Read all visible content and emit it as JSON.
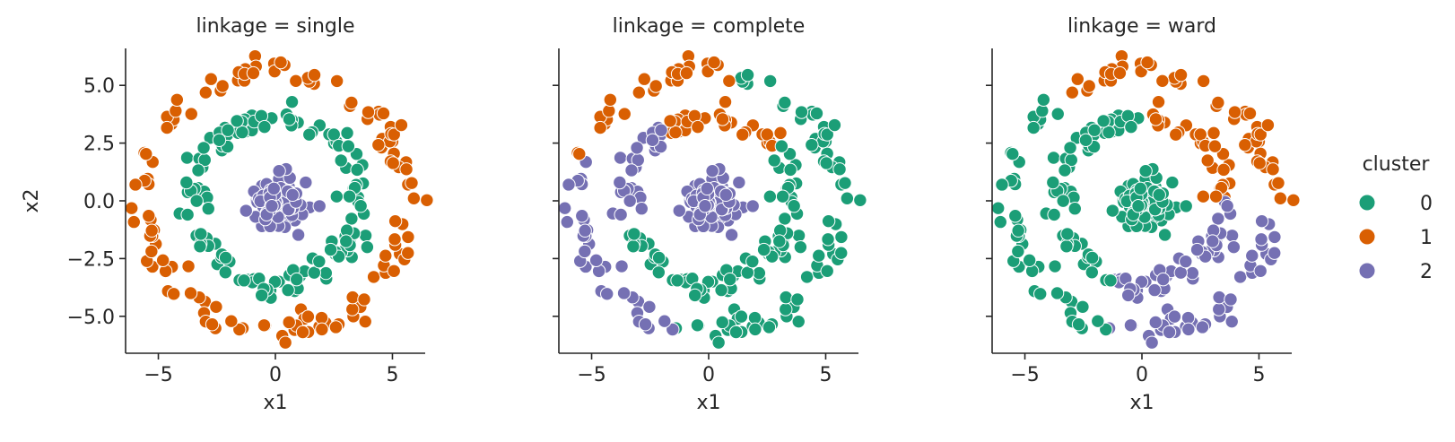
{
  "colors": {
    "0": "#1b9e77",
    "1": "#d95f02",
    "2": "#7570b3",
    "axis": "#262626",
    "point_edge": "#ffffff"
  },
  "legend": {
    "title": "cluster",
    "placement": "right",
    "entries": [
      {
        "label": "0",
        "color_key": "0"
      },
      {
        "label": "1",
        "color_key": "1"
      },
      {
        "label": "2",
        "color_key": "2"
      }
    ]
  },
  "chart_data": [
    {
      "type": "scatter",
      "title": "linkage = single",
      "xlabel": "x1",
      "ylabel": "x2",
      "xlim": [
        -6.4,
        6.4
      ],
      "ylim": [
        -6.6,
        6.6
      ],
      "xticks": [
        -5,
        0,
        5
      ],
      "xtick_labels": [
        "−5",
        "0",
        "5"
      ],
      "yticks": [
        5.0,
        2.5,
        0.0,
        -2.5,
        -5.0
      ],
      "ytick_labels": [
        "5.0",
        "2.5",
        "0.0",
        "−2.5",
        "−5.0"
      ],
      "show_ytick_labels": true,
      "grid": false,
      "assignment": "single",
      "rings": {
        "inner_blob_radius_max": 1.9,
        "middle_ring_radius": 3.6,
        "outer_ring_radius": 5.6,
        "points_per_group": 130
      }
    },
    {
      "type": "scatter",
      "title": "linkage = complete",
      "xlabel": "x1",
      "ylabel": "",
      "xlim": [
        -6.4,
        6.4
      ],
      "ylim": [
        -6.6,
        6.6
      ],
      "xticks": [
        -5,
        0,
        5
      ],
      "xtick_labels": [
        "−5",
        "0",
        "5"
      ],
      "yticks": [
        5.0,
        2.5,
        0.0,
        -2.5,
        -5.0
      ],
      "ytick_labels": [],
      "show_ytick_labels": false,
      "grid": false,
      "assignment": "complete",
      "rings": {
        "inner_blob_radius_max": 1.9,
        "middle_ring_radius": 3.6,
        "outer_ring_radius": 5.6,
        "points_per_group": 130
      }
    },
    {
      "type": "scatter",
      "title": "linkage = ward",
      "xlabel": "x1",
      "ylabel": "",
      "xlim": [
        -6.4,
        6.4
      ],
      "ylim": [
        -6.6,
        6.6
      ],
      "xticks": [
        -5,
        0,
        5
      ],
      "xtick_labels": [
        "−5",
        "0",
        "5"
      ],
      "yticks": [
        5.0,
        2.5,
        0.0,
        -2.5,
        -5.0
      ],
      "ytick_labels": [],
      "show_ytick_labels": false,
      "grid": false,
      "assignment": "ward",
      "rings": {
        "inner_blob_radius_max": 1.9,
        "middle_ring_radius": 3.6,
        "outer_ring_radius": 5.6,
        "points_per_group": 130
      }
    }
  ]
}
